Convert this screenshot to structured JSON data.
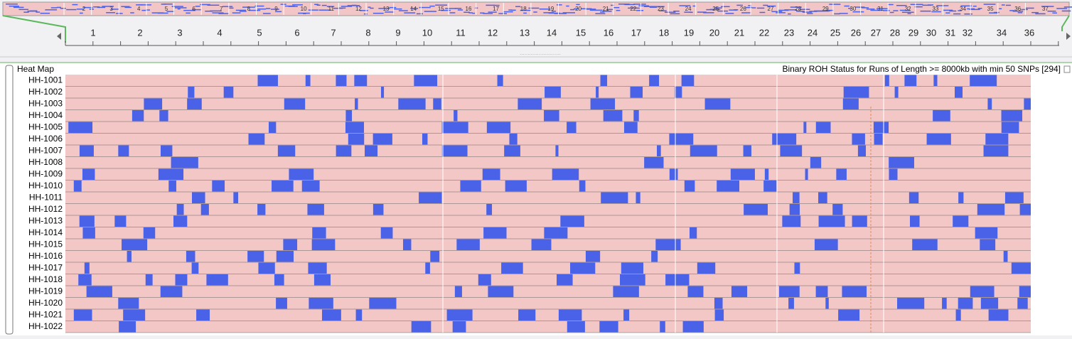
{
  "overview": {
    "labels": [
      "2",
      "3",
      "4",
      "5",
      "6",
      "7",
      "8",
      "9",
      "10",
      "11",
      "12",
      "13",
      "14",
      "15",
      "16",
      "17",
      "18",
      "19",
      "20",
      "21",
      "22",
      "23",
      "24",
      "25",
      "26",
      "27",
      "28",
      "29",
      "30",
      "31",
      "32",
      "33",
      "34",
      "35",
      "36",
      "37"
    ]
  },
  "ruler": {
    "labels": [
      "1",
      "2",
      "3",
      "4",
      "5",
      "6",
      "7",
      "8",
      "9",
      "10",
      "11",
      "12",
      "13",
      "14",
      "15",
      "16",
      "17",
      "18",
      "19",
      "20",
      "21",
      "22",
      "23",
      "24",
      "25",
      "26",
      "27",
      "28",
      "29",
      "30",
      "31",
      "32",
      "34",
      "36"
    ]
  },
  "heatmap": {
    "title": "Heat Map",
    "subtitle": "Binary ROH Status for Runs of Length >= 8000kb with min 50 SNPs [294]",
    "samples": [
      "HH-1001",
      "HH-1002",
      "HH-1003",
      "HH-1004",
      "HH-1005",
      "HH-1006",
      "HH-1007",
      "HH-1008",
      "HH-1009",
      "HH-1010",
      "HH-1011",
      "HH-1012",
      "HH-1013",
      "HH-1014",
      "HH-1015",
      "HH-1016",
      "HH-1017",
      "HH-1018",
      "HH-1019",
      "HH-1020",
      "HH-1021",
      "HH-1022"
    ]
  }
}
